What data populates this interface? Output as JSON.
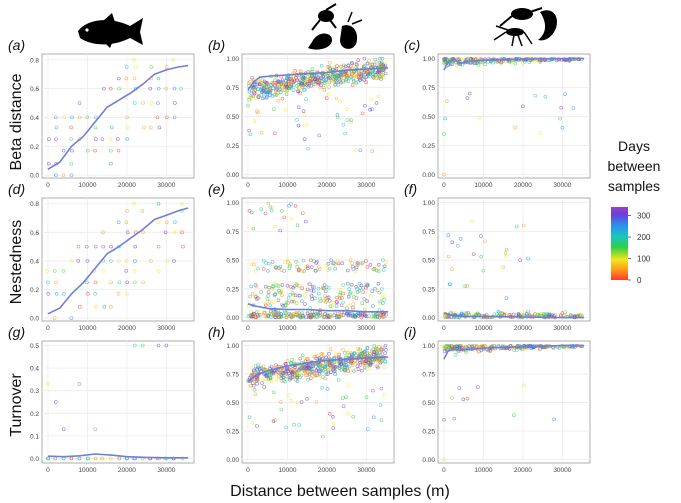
{
  "figure": {
    "xlabel": "Distance between samples (m)",
    "row_labels": [
      "Beta distance",
      "Nestedness",
      "Turnover"
    ],
    "column_icons": [
      "fish-silhouette-icon",
      "small-invertebrates-silhouette-icon",
      "crustaceans-silhouette-icon"
    ],
    "legend": {
      "title_lines": [
        "Days",
        "between",
        "samples"
      ],
      "ticks": [
        "300",
        "200",
        "100",
        "0"
      ],
      "tick_values": [
        300,
        200,
        100,
        0
      ],
      "range": [
        0,
        340
      ],
      "colors": [
        "#ff3a2a",
        "#ff9a1a",
        "#f2e61a",
        "#2fcf4a",
        "#17c6c0",
        "#2b8ff0",
        "#6a3fd8",
        "#9a3fc8"
      ]
    },
    "trend_color": "#6f7fd9"
  },
  "chart_data": [
    {
      "id": "a",
      "label": "(a)",
      "type": "scatter",
      "xlim": [
        -1500,
        37000
      ],
      "ylim": [
        -0.02,
        0.84
      ],
      "xticks": [
        0,
        10000,
        20000,
        30000
      ],
      "yticks": [
        0.0,
        0.2,
        0.4,
        0.6,
        0.8
      ],
      "ytick_labels": [
        "0.0",
        "0.2",
        "0.4",
        "0.6",
        "0.8"
      ],
      "pattern": "fish_beta",
      "trend": {
        "x": [
          0,
          3000,
          6000,
          9000,
          12000,
          15000,
          18000,
          21000,
          24000,
          27000,
          30000,
          33000,
          35500
        ],
        "y": [
          0.04,
          0.09,
          0.2,
          0.27,
          0.37,
          0.47,
          0.52,
          0.57,
          0.63,
          0.7,
          0.73,
          0.75,
          0.76
        ]
      }
    },
    {
      "id": "b",
      "label": "(b)",
      "type": "scatter",
      "xlim": [
        -1500,
        37000
      ],
      "ylim": [
        -0.03,
        1.04
      ],
      "xticks": [
        0,
        10000,
        20000,
        30000
      ],
      "yticks": [
        0.0,
        0.25,
        0.5,
        0.75,
        1.0
      ],
      "ytick_labels": [
        "0.00",
        "0.25",
        "0.50",
        "0.75",
        "1.00"
      ],
      "pattern": "dense_high",
      "trend": {
        "x": [
          0,
          1500,
          3000,
          6000,
          10000,
          15000,
          20000,
          25000,
          30000,
          35500
        ],
        "y": [
          0.73,
          0.8,
          0.84,
          0.85,
          0.86,
          0.87,
          0.88,
          0.9,
          0.91,
          0.92
        ]
      }
    },
    {
      "id": "c",
      "label": "(c)",
      "type": "scatter",
      "xlim": [
        -1500,
        37000
      ],
      "ylim": [
        -0.03,
        1.04
      ],
      "xticks": [
        0,
        10000,
        20000,
        30000
      ],
      "yticks": [
        0.0,
        0.25,
        0.5,
        0.75,
        1.0
      ],
      "ytick_labels": [
        "0.00",
        "0.25",
        "0.50",
        "0.75",
        "1.00"
      ],
      "pattern": "sparse_high",
      "trend": {
        "x": [
          0,
          1000,
          2500,
          4000,
          7000,
          12000,
          20000,
          30000,
          35500
        ],
        "y": [
          0.9,
          0.97,
          1.0,
          0.96,
          0.98,
          0.99,
          0.995,
          1.0,
          1.0
        ]
      }
    },
    {
      "id": "d",
      "label": "(d)",
      "type": "scatter",
      "xlim": [
        -1500,
        37000
      ],
      "ylim": [
        -0.02,
        0.84
      ],
      "xticks": [
        0,
        10000,
        20000,
        30000
      ],
      "yticks": [
        0.0,
        0.2,
        0.4,
        0.6,
        0.8
      ],
      "ytick_labels": [
        "0.0",
        "0.2",
        "0.4",
        "0.6",
        "0.8"
      ],
      "pattern": "fish_beta",
      "trend": {
        "x": [
          0,
          3000,
          6000,
          9000,
          12000,
          15000,
          18000,
          21000,
          24000,
          27000,
          30000,
          33000,
          35500
        ],
        "y": [
          0.03,
          0.07,
          0.17,
          0.25,
          0.35,
          0.45,
          0.5,
          0.56,
          0.62,
          0.69,
          0.72,
          0.75,
          0.77
        ]
      }
    },
    {
      "id": "e",
      "label": "(e)",
      "type": "scatter",
      "xlim": [
        -1500,
        37000
      ],
      "ylim": [
        -0.03,
        1.04
      ],
      "xticks": [
        0,
        10000,
        20000,
        30000
      ],
      "yticks": [
        0.0,
        0.25,
        0.5,
        0.75,
        1.0
      ],
      "ytick_labels": [
        "0.00",
        "0.25",
        "0.50",
        "0.75",
        "1.00"
      ],
      "pattern": "dense_low",
      "trend": {
        "x": [
          0,
          2000,
          5000,
          10000,
          15000,
          20000,
          25000,
          30000,
          35500
        ],
        "y": [
          0.12,
          0.1,
          0.08,
          0.07,
          0.07,
          0.06,
          0.06,
          0.05,
          0.05
        ]
      }
    },
    {
      "id": "f",
      "label": "(f)",
      "type": "scatter",
      "xlim": [
        -1500,
        37000
      ],
      "ylim": [
        -0.03,
        1.04
      ],
      "xticks": [
        0,
        10000,
        20000,
        30000
      ],
      "yticks": [
        0.0,
        0.25,
        0.5,
        0.75,
        1.0
      ],
      "ytick_labels": [
        "0.00",
        "0.25",
        "0.50",
        "0.75",
        "1.00"
      ],
      "pattern": "sparse_low",
      "trend": {
        "x": [
          0,
          2000,
          5000,
          10000,
          20000,
          30000,
          35500
        ],
        "y": [
          0.04,
          0.02,
          0.01,
          0.01,
          0.005,
          0.0,
          0.0
        ]
      }
    },
    {
      "id": "g",
      "label": "(g)",
      "type": "scatter",
      "xlim": [
        -1500,
        37000
      ],
      "ylim": [
        -0.02,
        0.52
      ],
      "xticks": [
        0,
        10000,
        20000,
        30000
      ],
      "yticks": [
        0.0,
        0.1,
        0.2,
        0.3,
        0.4,
        0.5
      ],
      "ytick_labels": [
        "0.0",
        "0.1",
        "0.2",
        "0.3",
        "0.4",
        "0.5"
      ],
      "pattern": "fish_turn",
      "trend": {
        "x": [
          0,
          4000,
          8000,
          12000,
          16000,
          20000,
          25000,
          30000,
          35500
        ],
        "y": [
          0.01,
          0.008,
          0.012,
          0.02,
          0.015,
          0.008,
          0.005,
          0.003,
          0.003
        ]
      }
    },
    {
      "id": "h",
      "label": "(h)",
      "type": "scatter",
      "xlim": [
        -1500,
        37000
      ],
      "ylim": [
        -0.03,
        1.04
      ],
      "xticks": [
        0,
        10000,
        20000,
        30000
      ],
      "yticks": [
        0.0,
        0.25,
        0.5,
        0.75,
        1.0
      ],
      "ytick_labels": [
        "0.00",
        "0.25",
        "0.50",
        "0.75",
        "1.00"
      ],
      "pattern": "dense_high",
      "trend": {
        "x": [
          0,
          2000,
          5000,
          10000,
          15000,
          20000,
          25000,
          30000,
          35500
        ],
        "y": [
          0.68,
          0.74,
          0.78,
          0.82,
          0.85,
          0.87,
          0.88,
          0.89,
          0.9
        ]
      }
    },
    {
      "id": "i",
      "label": "(i)",
      "type": "scatter",
      "xlim": [
        -1500,
        37000
      ],
      "ylim": [
        -0.03,
        1.04
      ],
      "xticks": [
        0,
        10000,
        20000,
        30000
      ],
      "yticks": [
        0.0,
        0.25,
        0.5,
        0.75,
        1.0
      ],
      "ytick_labels": [
        "0.00",
        "0.25",
        "0.50",
        "0.75",
        "1.00"
      ],
      "pattern": "sparse_high",
      "trend": {
        "x": [
          0,
          1000,
          2500,
          4000,
          7000,
          12000,
          20000,
          30000,
          35500
        ],
        "y": [
          0.88,
          0.95,
          0.97,
          0.96,
          0.97,
          0.98,
          0.99,
          1.0,
          1.0
        ]
      }
    }
  ]
}
